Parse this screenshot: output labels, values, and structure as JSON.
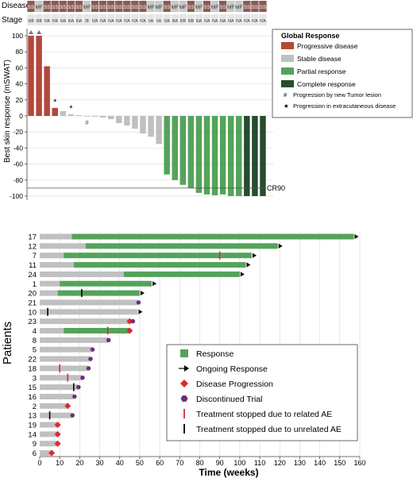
{
  "colors": {
    "progressive": "#b5473c",
    "stable": "#c0c0c0",
    "partial": "#55a35a",
    "complete": "#264d2e",
    "ss_cell": "#8a5a52",
    "mf_cell": "#c8c8c8",
    "stage_cell": "#e6e6e6",
    "response": "#55a35a",
    "pre_response": "#c0c0c0",
    "progression_marker": "#e0282b",
    "discontinued_marker": "#6b2f7a",
    "related_ae": "#e0282b",
    "unrelated_ae": "#000000"
  },
  "chart_data": [
    {
      "type": "bar",
      "panel": "waterfall",
      "row_labels": {
        "disease": "Disease",
        "stage": "Stage"
      },
      "disease": [
        "SS",
        "MF",
        "SS",
        "SS",
        "SS",
        "SS",
        "SS",
        "MF",
        "SS",
        "SS",
        "SS",
        "SS",
        "SS",
        "SS",
        "SS",
        "MF",
        "MF",
        "SS",
        "MF",
        "MF",
        "SS",
        "MF",
        "SS",
        "MF",
        "SS",
        "MF",
        "MF",
        "SS",
        "SS",
        "SS"
      ],
      "stage": [
        "IIIB",
        "IIIB",
        "IVA",
        "IVA",
        "IVA",
        "IIIA",
        "IIIA",
        "IB",
        "IVA",
        "IVA",
        "IVA",
        "IVA",
        "IVA",
        "IVA",
        "IVA",
        "IIA",
        "IIA",
        "IVA",
        "IIIA",
        "IIIB",
        "IIIB",
        "IIIA",
        "IVA",
        "IVA",
        "IIIA",
        "IIIA",
        "IVA",
        "IVA",
        "IVA",
        "IVA"
      ],
      "values": [
        100,
        100,
        62,
        10,
        6,
        2,
        1,
        0,
        -1,
        -2,
        -4,
        -9,
        -12,
        -16,
        -22,
        -26,
        -35,
        -73,
        -80,
        -86,
        -90,
        -96,
        -98,
        -99,
        -98,
        -100,
        -100,
        -100,
        -100,
        -100
      ],
      "categories_response": [
        "progressive",
        "progressive",
        "progressive",
        "progressive",
        "stable",
        "stable",
        "stable",
        "stable",
        "stable",
        "stable",
        "stable",
        "stable",
        "stable",
        "stable",
        "stable",
        "stable",
        "stable",
        "partial",
        "partial",
        "partial",
        "partial",
        "partial",
        "partial",
        "partial",
        "partial",
        "partial",
        "partial",
        "complete",
        "complete",
        "complete"
      ],
      "arrow_bars": [
        0,
        1
      ],
      "star_bars": [
        3,
        5
      ],
      "hash_bars": [
        7
      ],
      "ylabel": "Best skin response (mSWAT)",
      "yticks": [
        100,
        80,
        60,
        40,
        20,
        0,
        -20,
        -40,
        -60,
        -80,
        -100
      ],
      "gridlines": [
        100,
        80,
        60,
        40,
        20,
        0,
        -20,
        -40,
        -60,
        -80,
        -100
      ],
      "ylim": [
        -105,
        105
      ],
      "reference_line": {
        "value": -90,
        "label": "CR90"
      },
      "legend": {
        "title": "Global Response",
        "items": [
          {
            "key": "progressive",
            "label": "Progressive disease"
          },
          {
            "key": "stable",
            "label": "Stable disease"
          },
          {
            "key": "partial",
            "label": "Partial response"
          },
          {
            "key": "complete",
            "label": "Complete response"
          }
        ],
        "symbols": [
          {
            "symbol": "#",
            "label": "Progression by new Tumor lesion"
          },
          {
            "symbol": "★",
            "label": "Progression in extracutaneous disease"
          }
        ]
      }
    },
    {
      "type": "swimmer",
      "panel": "swimmer",
      "ylabel": "Patients",
      "xlabel": "Time (weeks)",
      "xlim": [
        0,
        160
      ],
      "xticks": [
        0,
        10,
        20,
        30,
        40,
        50,
        60,
        70,
        80,
        90,
        100,
        110,
        120,
        130,
        140,
        150,
        160
      ],
      "patients": [
        {
          "id": "17",
          "end": 157,
          "resp_start": 16,
          "ongoing": true,
          "progression": false,
          "discontinued": false,
          "related_ae": null,
          "unrelated_ae": null
        },
        {
          "id": "12",
          "end": 119,
          "resp_start": 23,
          "ongoing": true,
          "progression": false,
          "discontinued": false,
          "related_ae": null,
          "unrelated_ae": null
        },
        {
          "id": "7",
          "end": 106,
          "resp_start": 12,
          "ongoing": true,
          "progression": false,
          "discontinued": false,
          "related_ae": 90,
          "unrelated_ae": null
        },
        {
          "id": "11",
          "end": 103,
          "resp_start": 17,
          "ongoing": true,
          "progression": false,
          "discontinued": false,
          "related_ae": null,
          "unrelated_ae": null
        },
        {
          "id": "24",
          "end": 100,
          "resp_start": 42,
          "ongoing": true,
          "progression": false,
          "discontinued": false,
          "related_ae": null,
          "unrelated_ae": null
        },
        {
          "id": "1",
          "end": 56,
          "resp_start": 10,
          "ongoing": true,
          "progression": false,
          "discontinued": false,
          "related_ae": null,
          "unrelated_ae": null
        },
        {
          "id": "20",
          "end": 50,
          "resp_start": 9,
          "ongoing": true,
          "progression": false,
          "discontinued": false,
          "related_ae": null,
          "unrelated_ae": 21
        },
        {
          "id": "21",
          "end": 49,
          "resp_start": null,
          "ongoing": false,
          "progression": false,
          "discontinued": true,
          "related_ae": null,
          "unrelated_ae": null
        },
        {
          "id": "10",
          "end": 49,
          "resp_start": null,
          "ongoing": true,
          "progression": false,
          "discontinued": false,
          "related_ae": null,
          "unrelated_ae": 4
        },
        {
          "id": "23",
          "end": 45,
          "resp_start": null,
          "ongoing": false,
          "progression": true,
          "discontinued": true,
          "related_ae": null,
          "unrelated_ae": null
        },
        {
          "id": "4",
          "end": 45,
          "resp_start": 12,
          "ongoing": false,
          "progression": true,
          "discontinued": false,
          "related_ae": 34,
          "unrelated_ae": null
        },
        {
          "id": "8",
          "end": 34,
          "resp_start": null,
          "ongoing": false,
          "progression": false,
          "discontinued": true,
          "related_ae": null,
          "unrelated_ae": null
        },
        {
          "id": "5",
          "end": 26,
          "resp_start": null,
          "ongoing": false,
          "progression": false,
          "discontinued": true,
          "related_ae": null,
          "unrelated_ae": null
        },
        {
          "id": "22",
          "end": 25,
          "resp_start": null,
          "ongoing": false,
          "progression": false,
          "discontinued": true,
          "related_ae": null,
          "unrelated_ae": null
        },
        {
          "id": "18",
          "end": 24,
          "resp_start": null,
          "ongoing": false,
          "progression": false,
          "discontinued": true,
          "related_ae": 10,
          "unrelated_ae": null
        },
        {
          "id": "3",
          "end": 21,
          "resp_start": null,
          "ongoing": false,
          "progression": false,
          "discontinued": true,
          "related_ae": 14,
          "unrelated_ae": null
        },
        {
          "id": "15",
          "end": 19,
          "resp_start": null,
          "ongoing": false,
          "progression": false,
          "discontinued": true,
          "related_ae": null,
          "unrelated_ae": 17
        },
        {
          "id": "16",
          "end": 17,
          "resp_start": null,
          "ongoing": false,
          "progression": false,
          "discontinued": true,
          "related_ae": null,
          "unrelated_ae": null
        },
        {
          "id": "2",
          "end": 14,
          "resp_start": null,
          "ongoing": false,
          "progression": true,
          "discontinued": false,
          "related_ae": null,
          "unrelated_ae": null
        },
        {
          "id": "13",
          "end": 16,
          "resp_start": null,
          "ongoing": false,
          "progression": false,
          "discontinued": true,
          "related_ae": null,
          "unrelated_ae": 5
        },
        {
          "id": "19",
          "end": 9,
          "resp_start": null,
          "ongoing": false,
          "progression": true,
          "discontinued": false,
          "related_ae": null,
          "unrelated_ae": null
        },
        {
          "id": "14",
          "end": 9,
          "resp_start": null,
          "ongoing": false,
          "progression": true,
          "discontinued": false,
          "related_ae": null,
          "unrelated_ae": null
        },
        {
          "id": "9",
          "end": 9,
          "resp_start": null,
          "ongoing": false,
          "progression": true,
          "discontinued": false,
          "related_ae": null,
          "unrelated_ae": null
        },
        {
          "id": "6",
          "end": 6,
          "resp_start": null,
          "ongoing": false,
          "progression": true,
          "discontinued": false,
          "related_ae": null,
          "unrelated_ae": null
        }
      ],
      "legend": {
        "items": [
          {
            "marker": "response",
            "label": "Response"
          },
          {
            "marker": "ongoing",
            "label": "Ongoing Response"
          },
          {
            "marker": "progression",
            "label": "Disease Progression"
          },
          {
            "marker": "discontinued",
            "label": "Discontinued Trial"
          },
          {
            "marker": "related_ae",
            "label": "Treatment stopped due to related AE"
          },
          {
            "marker": "unrelated_ae",
            "label": "Treatment stopped due to unrelated AE"
          }
        ]
      }
    }
  ]
}
